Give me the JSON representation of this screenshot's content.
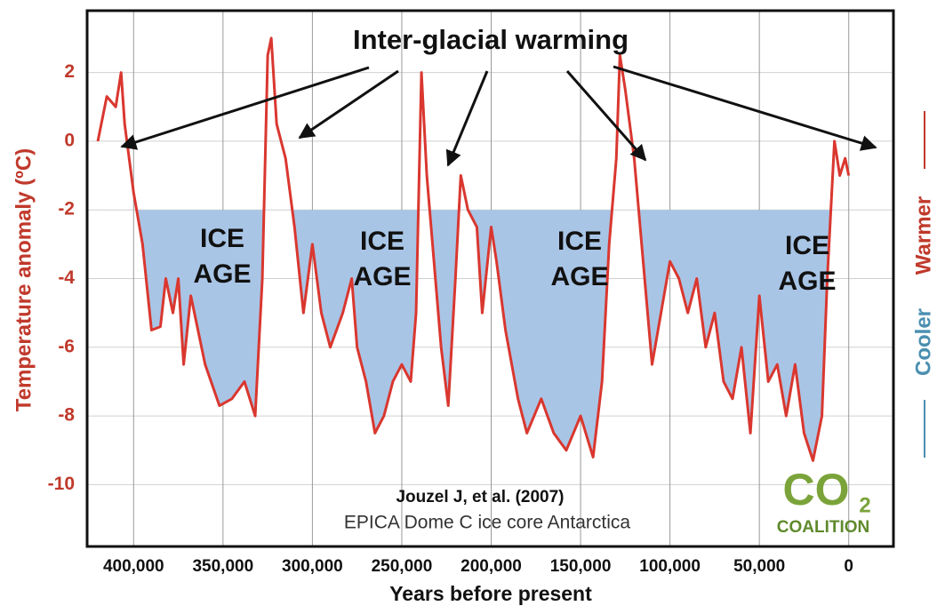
{
  "chart_data": {
    "type": "line",
    "title": "Inter-glacial warming",
    "xlabel": "Years before present",
    "ylabel": "Temperature anomaly (ºC)",
    "right_labels": [
      "Cooler",
      "Warmer"
    ],
    "annotations": [
      [
        "ICE",
        "AGE"
      ],
      [
        "ICE",
        "AGE"
      ],
      [
        "ICE",
        "AGE"
      ],
      [
        "ICE",
        "AGE"
      ]
    ],
    "citation": [
      "Jouzel J, et al. (2007)",
      "EPICA Dome C ice core Antarctica"
    ],
    "logo": [
      "CO",
      "2",
      "COALITION"
    ],
    "xlim": [
      426000,
      -25000
    ],
    "ylim": [
      -11.8,
      3.8
    ],
    "xticks": [
      {
        "value": 400000,
        "label": "400,000"
      },
      {
        "value": 350000,
        "label": "350,000"
      },
      {
        "value": 300000,
        "label": "300,000"
      },
      {
        "value": 250000,
        "label": "250,000"
      },
      {
        "value": 200000,
        "label": "200,000"
      },
      {
        "value": 150000,
        "label": "150,000"
      },
      {
        "value": 100000,
        "label": "100,000"
      },
      {
        "value": 50000,
        "label": "50,000"
      },
      0
    ],
    "yticks": [
      2,
      0,
      -2,
      -4,
      -6,
      -8,
      -10
    ],
    "grid": true,
    "shade_below": -2,
    "shade_color": "#a9c5e6",
    "x": [
      420000,
      415000,
      410000,
      407000,
      405000,
      400000,
      395000,
      390000,
      385000,
      382000,
      378000,
      375000,
      372000,
      368000,
      360000,
      352000,
      345000,
      338000,
      332000,
      328000,
      325000,
      323000,
      320000,
      315000,
      310000,
      305000,
      300000,
      295000,
      290000,
      283000,
      278000,
      275000,
      270000,
      265000,
      260000,
      255000,
      250000,
      245000,
      242000,
      239000,
      236000,
      232000,
      228000,
      224000,
      220000,
      217000,
      213000,
      208000,
      205000,
      200000,
      197000,
      192000,
      185000,
      180000,
      172000,
      165000,
      158000,
      150000,
      143000,
      138000,
      134000,
      130000,
      128000,
      125000,
      120000,
      115000,
      110000,
      105000,
      100000,
      95000,
      90000,
      85000,
      80000,
      75000,
      70000,
      65000,
      60000,
      55000,
      50000,
      45000,
      40000,
      35000,
      30000,
      25000,
      20000,
      15000,
      12000,
      10000,
      8000,
      5000,
      2000,
      0
    ],
    "series": [
      {
        "name": "Temperature anomaly",
        "color": "#d9372f",
        "values": [
          0.0,
          1.3,
          1.0,
          2.0,
          0.5,
          -1.5,
          -3,
          -5.5,
          -5.4,
          -4,
          -5,
          -4,
          -6.5,
          -4.5,
          -6.5,
          -7.7,
          -7.5,
          -7.0,
          -8.0,
          -4,
          2.5,
          3.0,
          0.5,
          -0.5,
          -2.5,
          -5,
          -3,
          -5,
          -6,
          -5,
          -4,
          -6,
          -7,
          -8.5,
          -8,
          -7,
          -6.5,
          -7,
          -5,
          2.0,
          -1.0,
          -3.5,
          -6,
          -7.7,
          -4,
          -1.0,
          -2.0,
          -2.5,
          -5,
          -2.5,
          -3.5,
          -5.5,
          -7.5,
          -8.5,
          -7.5,
          -8.5,
          -9,
          -8,
          -9.2,
          -7,
          -3,
          -0.5,
          2.5,
          1.5,
          -0.5,
          -3.5,
          -6.5,
          -5,
          -3.5,
          -4,
          -5,
          -4,
          -6,
          -5,
          -7,
          -7.5,
          -6,
          -8.5,
          -4.5,
          -7,
          -6.5,
          -8,
          -6.5,
          -8.5,
          -9.3,
          -8,
          -4,
          -2,
          0,
          -1,
          -0.5,
          -1
        ]
      }
    ]
  }
}
